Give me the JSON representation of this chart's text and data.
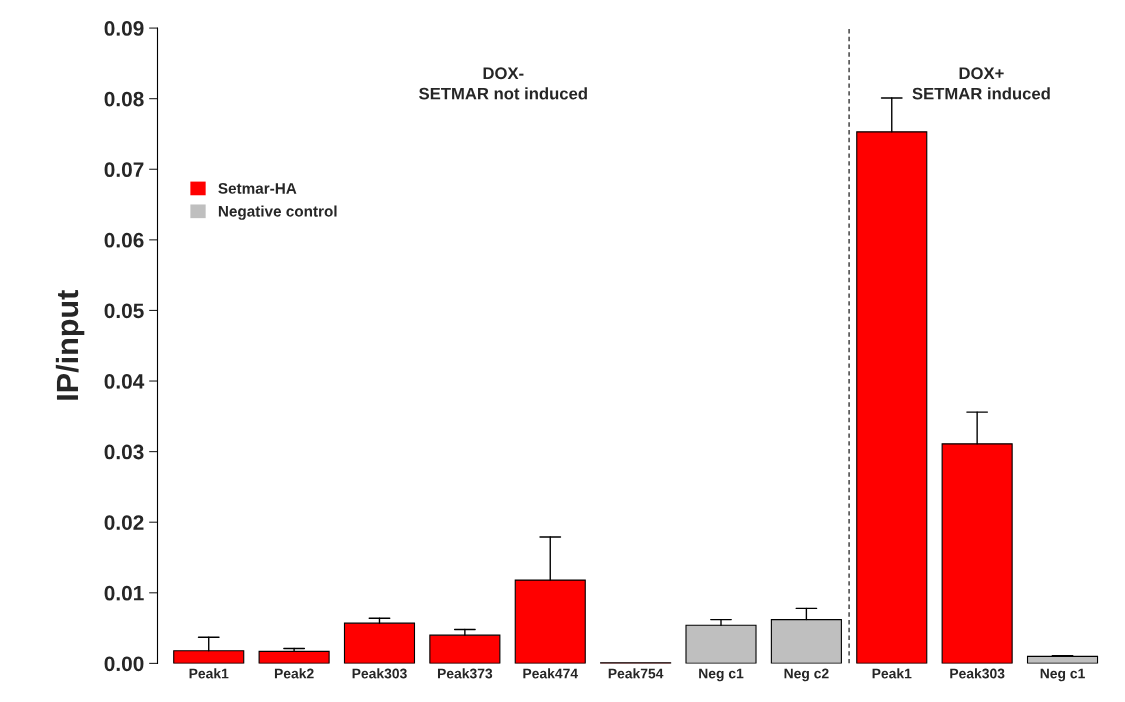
{
  "chart_data": {
    "type": "bar",
    "categories": [
      "Peak1",
      "Peak2",
      "Peak303",
      "Peak373",
      "Peak474",
      "Peak754",
      "Neg c1",
      "Neg c2",
      "Peak1",
      "Peak303",
      "Neg c1"
    ],
    "series": [
      {
        "name": "Setmar-HA",
        "color": "#ff0000",
        "values": [
          0.0018,
          0.0017,
          0.0057,
          0.004,
          0.0118,
          0.0001,
          null,
          null,
          0.0753,
          0.0311,
          null
        ],
        "errors": [
          [
            0.0018,
            0.0037
          ],
          [
            0.0017,
            0.0021
          ],
          [
            0.0057,
            0.0064
          ],
          [
            0.004,
            0.0048
          ],
          [
            0.0118,
            0.0179
          ],
          null,
          null,
          null,
          [
            0.0753,
            0.0801
          ],
          [
            0.0311,
            0.0356
          ],
          null
        ]
      },
      {
        "name": "Negative control",
        "color": "#bfbfbf",
        "values": [
          null,
          null,
          null,
          null,
          null,
          null,
          0.0054,
          0.0062,
          null,
          null,
          0.001
        ],
        "errors": [
          null,
          null,
          null,
          null,
          null,
          null,
          [
            0.0054,
            0.0062
          ],
          [
            0.0062,
            0.0078
          ],
          null,
          null,
          [
            0.001,
            0.0011
          ]
        ]
      }
    ],
    "ylabel": "IP/input",
    "ylim": [
      0,
      0.09
    ],
    "yticks": [
      {
        "value": 0,
        "label": "0.00"
      },
      {
        "value": 0.01,
        "label": "0.01"
      },
      {
        "value": 0.02,
        "label": "0.02"
      },
      {
        "value": 0.03,
        "label": "0.03"
      },
      {
        "value": 0.04,
        "label": "0.04"
      },
      {
        "value": 0.05,
        "label": "0.05"
      },
      {
        "value": 0.06,
        "label": "0.06"
      },
      {
        "value": 0.07,
        "label": "0.07"
      },
      {
        "value": 0.08,
        "label": "0.08"
      },
      {
        "value": 0.09,
        "label": "0.09"
      }
    ],
    "annotations": [
      "DOX-\nSETMAR not induced",
      "DOX+\nSETMAR induced"
    ],
    "legend": "top left",
    "grid": false
  }
}
